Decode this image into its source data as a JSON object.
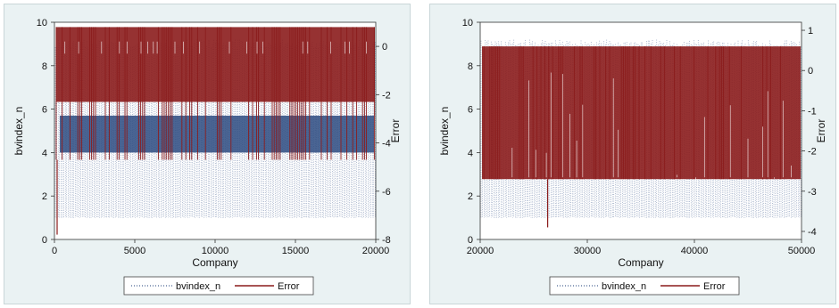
{
  "chart_data": [
    {
      "type": "line",
      "xlabel": "Company",
      "ylabel": "bvindex_n",
      "y2label": "Error",
      "xlim": [
        0,
        20000
      ],
      "ylim": [
        0,
        10
      ],
      "y2lim": [
        -8,
        1
      ],
      "xticks": [
        0,
        5000,
        10000,
        15000,
        20000
      ],
      "xtick_labels": [
        "0",
        "5000",
        "10000",
        "15000",
        "20000"
      ],
      "yticks": [
        0,
        2,
        4,
        6,
        8,
        10
      ],
      "ytick_labels": [
        "0",
        "2",
        "4",
        "6",
        "8",
        "10"
      ],
      "y2ticks": [
        0,
        -2,
        -4,
        -6,
        -8
      ],
      "y2tick_labels": [
        "0",
        "-2",
        "-4",
        "-6",
        "-8"
      ],
      "legend_position": "bottom",
      "series": [
        {
          "name": "bvindex_n",
          "axis": "left",
          "style": "dotted",
          "color": "#1f3f7a",
          "x_range": [
            0,
            20000
          ],
          "low": 1,
          "high": 9.2,
          "dense_band": [
            4,
            5.7
          ]
        },
        {
          "name": "Error",
          "axis": "right",
          "style": "solid",
          "color": "#8b1c1c",
          "x_range": [
            0,
            20000
          ],
          "low": -4.7,
          "high": 0.8,
          "min_outlier": -7.8
        }
      ],
      "colors": {
        "panel_bg": "#eaf2f3",
        "plot_bg": "#ffffff",
        "band": "#2b4a80"
      }
    },
    {
      "type": "line",
      "xlabel": "Company",
      "ylabel": "bvindex_n",
      "y2label": "Error",
      "xlim": [
        20000,
        50000
      ],
      "ylim": [
        0,
        10
      ],
      "y2lim": [
        -4.2,
        1.2
      ],
      "xticks": [
        20000,
        30000,
        40000,
        50000
      ],
      "xtick_labels": [
        "20000",
        "30000",
        "40000",
        "50000"
      ],
      "yticks": [
        0,
        2,
        4,
        6,
        8,
        10
      ],
      "ytick_labels": [
        "0",
        "2",
        "4",
        "6",
        "8",
        "10"
      ],
      "y2ticks": [
        1,
        0,
        -1,
        -2,
        -3,
        -4
      ],
      "y2tick_labels": [
        "1",
        "0",
        "-1",
        "-2",
        "-3",
        "-4"
      ],
      "legend_position": "bottom",
      "series": [
        {
          "name": "bvindex_n",
          "axis": "left",
          "style": "dotted",
          "color": "#1f3f7a",
          "x_range": [
            20000,
            50000
          ],
          "low": 1,
          "high": 9.2
        },
        {
          "name": "Error",
          "axis": "right",
          "style": "solid",
          "color": "#8b1c1c",
          "x_range": [
            20000,
            50000
          ],
          "low": -2.7,
          "high": 0.6,
          "min_outlier": -3.9
        }
      ],
      "colors": {
        "panel_bg": "#eaf2f3",
        "plot_bg": "#ffffff",
        "band": "#2b4a80"
      }
    }
  ]
}
